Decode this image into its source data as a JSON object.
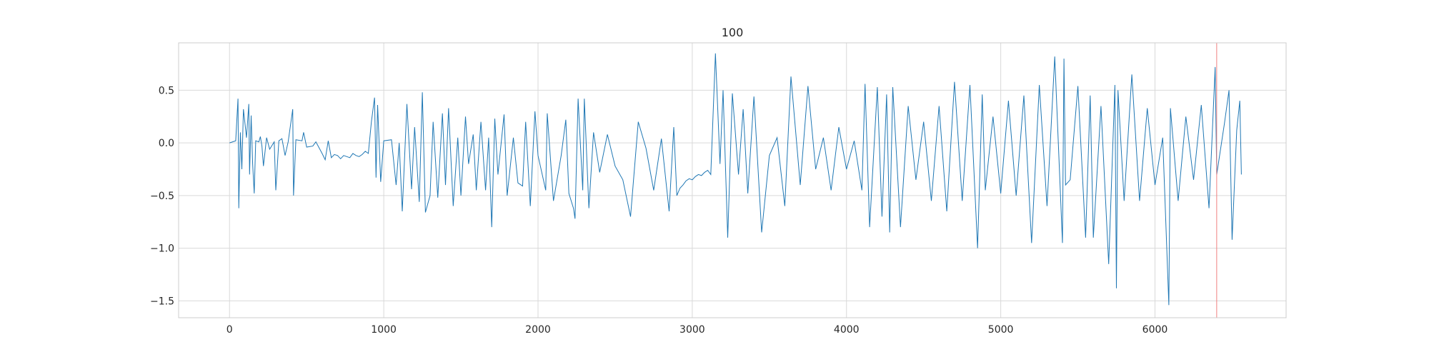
{
  "chart_data": {
    "type": "line",
    "title": "100",
    "xlabel": "",
    "ylabel": "",
    "xlim": [
      -330,
      6850
    ],
    "ylim": [
      -1.66,
      0.95
    ],
    "xticks": [
      0,
      1000,
      2000,
      3000,
      4000,
      5000,
      6000
    ],
    "yticks": [
      -1.5,
      -1.0,
      -0.5,
      0.0,
      0.5
    ],
    "xtick_labels": [
      "0",
      "1000",
      "2000",
      "3000",
      "4000",
      "5000",
      "6000"
    ],
    "ytick_labels": [
      "−1.5",
      "−1.0",
      "−0.5",
      "0.0",
      "0.5"
    ],
    "grid": true,
    "legend": "none",
    "colors": {
      "series": "#1f77b4",
      "marker_line": "#f08080",
      "grid": "#d9d9d9",
      "frame": "#cccccc"
    },
    "series": [
      {
        "x": [
          0,
          40,
          55,
          60,
          70,
          80,
          90,
          110,
          125,
          130,
          140,
          150,
          160,
          170,
          190,
          200,
          210,
          220,
          240,
          260,
          290,
          300,
          320,
          340,
          360,
          380,
          410,
          415,
          430,
          470,
          480,
          500,
          540,
          560,
          600,
          620,
          640,
          660,
          680,
          700,
          720,
          740,
          760,
          780,
          800,
          820,
          840,
          860,
          880,
          900,
          920,
          940,
          950,
          960,
          980,
          1000,
          1050,
          1080,
          1100,
          1120,
          1150,
          1180,
          1200,
          1230,
          1250,
          1270,
          1300,
          1320,
          1350,
          1380,
          1400,
          1420,
          1450,
          1480,
          1500,
          1530,
          1550,
          1580,
          1600,
          1630,
          1660,
          1680,
          1700,
          1720,
          1740,
          1780,
          1800,
          1840,
          1870,
          1900,
          1920,
          1950,
          1980,
          2000,
          2050,
          2060,
          2100,
          2150,
          2180,
          2200,
          2230,
          2240,
          2260,
          2290,
          2300,
          2330,
          2360,
          2400,
          2450,
          2500,
          2550,
          2600,
          2650,
          2700,
          2750,
          2800,
          2850,
          2880,
          2900,
          2920,
          2940,
          2960,
          2980,
          3000,
          3020,
          3040,
          3060,
          3080,
          3100,
          3120,
          3150,
          3180,
          3200,
          3230,
          3260,
          3300,
          3330,
          3360,
          3400,
          3450,
          3500,
          3550,
          3600,
          3640,
          3700,
          3750,
          3800,
          3850,
          3900,
          3950,
          4000,
          4050,
          4100,
          4120,
          4150,
          4200,
          4230,
          4260,
          4280,
          4300,
          4350,
          4400,
          4450,
          4500,
          4550,
          4600,
          4650,
          4700,
          4750,
          4800,
          4850,
          4880,
          4900,
          4950,
          5000,
          5050,
          5100,
          5150,
          5200,
          5250,
          5300,
          5350,
          5400,
          5410,
          5420,
          5450,
          5500,
          5550,
          5580,
          5600,
          5650,
          5700,
          5740,
          5750,
          5760,
          5800,
          5850,
          5900,
          5950,
          6000,
          6050,
          6090,
          6100,
          6150,
          6200,
          6250,
          6300,
          6350,
          6390,
          6400,
          6450,
          6480,
          6500,
          6530,
          6550,
          6560
        ],
        "y": [
          0.0,
          0.02,
          0.42,
          -0.62,
          0.1,
          -0.25,
          0.32,
          0.05,
          0.37,
          -0.3,
          0.26,
          -0.2,
          -0.48,
          0.02,
          0.01,
          0.06,
          -0.03,
          -0.22,
          0.05,
          -0.06,
          0.01,
          -0.45,
          0.02,
          0.04,
          -0.12,
          0.01,
          0.32,
          -0.5,
          0.03,
          0.02,
          0.1,
          -0.04,
          -0.03,
          0.01,
          -0.1,
          -0.16,
          0.02,
          -0.14,
          -0.11,
          -0.12,
          -0.15,
          -0.12,
          -0.13,
          -0.14,
          -0.1,
          -0.12,
          -0.13,
          -0.11,
          -0.08,
          -0.1,
          0.2,
          0.43,
          -0.33,
          0.36,
          -0.37,
          0.02,
          0.03,
          -0.4,
          0.0,
          -0.65,
          0.37,
          -0.44,
          0.15,
          -0.56,
          0.48,
          -0.66,
          -0.5,
          0.2,
          -0.52,
          0.28,
          -0.4,
          0.33,
          -0.6,
          0.05,
          -0.5,
          0.25,
          -0.2,
          0.08,
          -0.45,
          0.2,
          -0.45,
          0.05,
          -0.8,
          0.23,
          -0.3,
          0.27,
          -0.5,
          0.05,
          -0.38,
          -0.41,
          0.2,
          -0.6,
          0.3,
          -0.12,
          -0.45,
          0.28,
          -0.55,
          -0.12,
          0.22,
          -0.48,
          -0.62,
          -0.72,
          0.42,
          -0.45,
          0.42,
          -0.62,
          0.1,
          -0.28,
          0.08,
          -0.22,
          -0.35,
          -0.7,
          0.2,
          -0.05,
          -0.45,
          0.04,
          -0.65,
          0.15,
          -0.5,
          -0.43,
          -0.4,
          -0.36,
          -0.34,
          -0.35,
          -0.32,
          -0.3,
          -0.31,
          -0.28,
          -0.26,
          -0.3,
          0.85,
          -0.2,
          0.5,
          -0.9,
          0.47,
          -0.3,
          0.32,
          -0.48,
          0.44,
          -0.85,
          -0.12,
          0.05,
          -0.6,
          0.63,
          -0.4,
          0.54,
          -0.25,
          0.05,
          -0.45,
          0.15,
          -0.25,
          0.02,
          -0.45,
          0.56,
          -0.8,
          0.53,
          -0.7,
          0.46,
          -0.85,
          0.53,
          -0.8,
          0.35,
          -0.35,
          0.2,
          -0.55,
          0.35,
          -0.65,
          0.58,
          -0.55,
          0.55,
          -1.0,
          0.46,
          -0.45,
          0.25,
          -0.48,
          0.4,
          -0.5,
          0.45,
          -0.95,
          0.55,
          -0.6,
          0.82,
          -0.95,
          0.8,
          -0.4,
          -0.35,
          0.54,
          -0.9,
          0.45,
          -0.9,
          0.35,
          -1.15,
          0.55,
          -1.38,
          0.5,
          -0.55,
          0.65,
          -0.55,
          0.33,
          -0.4,
          0.05,
          -1.54,
          0.33,
          -0.55,
          0.25,
          -0.35,
          0.36,
          -0.62,
          0.72,
          -0.3,
          0.18,
          0.5,
          -0.92,
          0.12,
          0.4,
          -0.3
        ]
      }
    ],
    "vlines": [
      {
        "x": 6400
      }
    ]
  }
}
